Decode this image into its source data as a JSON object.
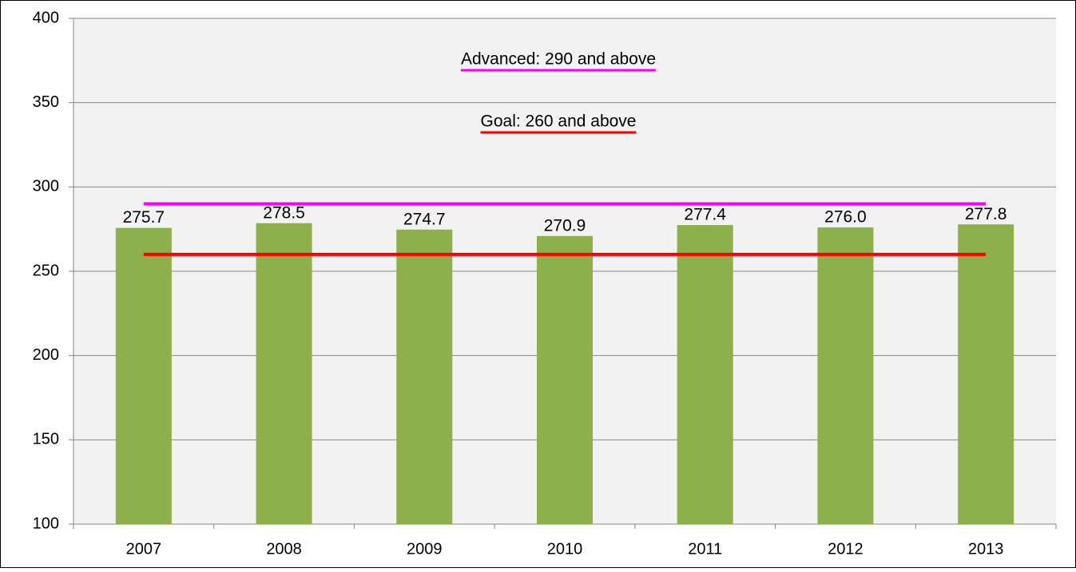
{
  "chart_data": {
    "type": "bar",
    "categories": [
      "2007",
      "2008",
      "2009",
      "2010",
      "2011",
      "2012",
      "2013"
    ],
    "values": [
      275.7,
      278.5,
      274.7,
      270.9,
      277.4,
      276.0,
      277.8
    ],
    "value_labels": [
      "275.7",
      "278.5",
      "274.7",
      "270.9",
      "277.4",
      "276.0",
      "277.8"
    ],
    "color": "#8db04d",
    "ylim": [
      100,
      400
    ],
    "yticks": [
      100,
      150,
      200,
      250,
      300,
      350,
      400
    ],
    "grid": true,
    "reference_lines": [
      {
        "value": 290,
        "color": "#ff00ff",
        "label": "Advanced: 290 and above"
      },
      {
        "value": 260,
        "color": "#ff0000",
        "label": "Goal: 260 and above"
      }
    ]
  }
}
